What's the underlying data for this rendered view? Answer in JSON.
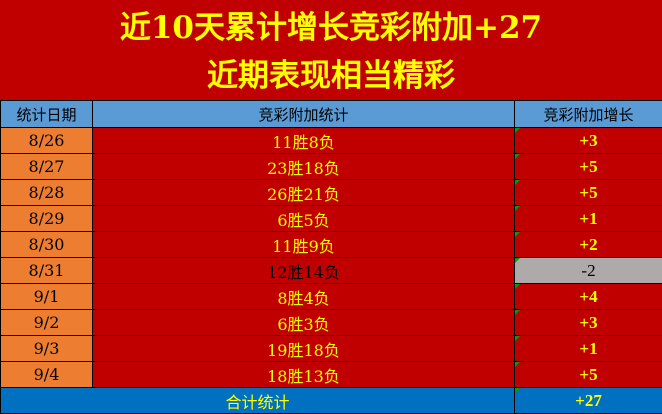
{
  "title": {
    "line1": "近10天累计增长竞彩附加+27",
    "line2": "近期表现相当精彩"
  },
  "headers": [
    "统计日期",
    "竞彩附加统计",
    "竞彩附加增长"
  ],
  "rows": [
    {
      "date": "8/26",
      "record": "11胜8负",
      "gain": "+3"
    },
    {
      "date": "8/27",
      "record": "23胜18负",
      "gain": "+5"
    },
    {
      "date": "8/28",
      "record": "26胜21负",
      "gain": "+5"
    },
    {
      "date": "8/29",
      "record": "6胜5负",
      "gain": "+1"
    },
    {
      "date": "8/30",
      "record": "11胜9负",
      "gain": "+2"
    },
    {
      "date": "8/31",
      "record": "12胜14负",
      "gain": "-2"
    },
    {
      "date": "9/1",
      "record": "8胜4负",
      "gain": "+4"
    },
    {
      "date": "9/2",
      "record": "6胜3负",
      "gain": "+3"
    },
    {
      "date": "9/3",
      "record": "19胜18负",
      "gain": "+1"
    },
    {
      "date": "9/4",
      "record": "18胜13负",
      "gain": "+5"
    }
  ],
  "total": {
    "label": "合计统计",
    "gain": "+27"
  },
  "colors": {
    "title_bg": "#C00000",
    "title_text": "#FFFF00",
    "header_bg": "#5B9BD5",
    "date_bg": "#ED7D31",
    "negative_bg": "#AEAAAA",
    "total_bg": "#0070C0"
  }
}
